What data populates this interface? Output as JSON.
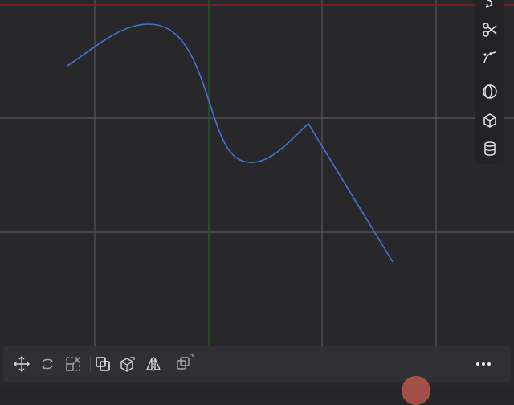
{
  "viewport": {
    "background": "#28282a",
    "grid_color": "#555558",
    "axis_x_color": "#8a1f1f",
    "axis_y_color": "#1f5a2a",
    "curve_color": "#3a78d8"
  },
  "right_toolbar": {
    "tools": [
      {
        "name": "undo-icon"
      },
      {
        "name": "scissors-icon"
      },
      {
        "name": "spline-curve-icon"
      },
      {
        "name": "sphere-icon"
      },
      {
        "name": "cube-icon"
      },
      {
        "name": "cylinder-icon"
      }
    ]
  },
  "bottom_toolbar": {
    "tools": [
      {
        "name": "move-icon"
      },
      {
        "name": "rotate-icon"
      },
      {
        "name": "scale-icon"
      },
      {
        "name": "boolean-icon"
      },
      {
        "name": "extrude-icon"
      },
      {
        "name": "mirror-icon"
      },
      {
        "name": "duplicate-icon"
      }
    ],
    "more": {
      "name": "more-icon"
    }
  },
  "record_indicator_color": "#b8584c"
}
